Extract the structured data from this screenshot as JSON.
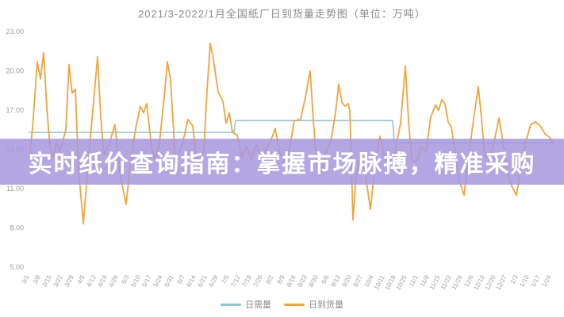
{
  "header": {
    "title": "2021/3-2022/1月全国纸厂日到货量走势图（单位：万吨）"
  },
  "banner": {
    "text": "实时纸价查询指南：掌握市场脉搏，精准采购",
    "background_rgba": "rgba(167,151,221,0.86)",
    "accent_hex": "#a795dd",
    "text_color": "#ffffff"
  },
  "legend": [
    {
      "label": "日需量",
      "color": "#92c4d9"
    },
    {
      "label": "日到货量",
      "color": "#f0a43e"
    }
  ],
  "chart_data": {
    "type": "line",
    "title": "2021/3-2022/1月全国纸厂日到货量走势图（单位：万吨）",
    "unit": "万吨",
    "ylim": [
      5,
      23
    ],
    "y_ticks": [
      "23.00",
      "20.00",
      "17.00",
      "14.00",
      "11.00",
      "8.00",
      "5.00"
    ],
    "x_ticks": [
      "3/1",
      "3/8",
      "3/15",
      "3/22",
      "3/29",
      "4/5",
      "4/12",
      "4/19",
      "4/26",
      "5/3",
      "5/10",
      "5/17",
      "5/24",
      "5/31",
      "6/7",
      "6/14",
      "6/21",
      "6/28",
      "7/5",
      "7/12",
      "7/19",
      "7/26",
      "8/2",
      "8/9",
      "8/16",
      "8/23",
      "8/30",
      "9/6",
      "9/13",
      "9/20",
      "9/27",
      "10/4",
      "10/11",
      "10/18",
      "10/25",
      "11/1",
      "11/8",
      "11/15",
      "11/22",
      "11/29",
      "12/6",
      "12/13",
      "12/20",
      "12/27",
      "1/3",
      "1/10",
      "1/17",
      "1/24"
    ],
    "x_tick_interval_days": 7,
    "x_domain_days": [
      0,
      330
    ],
    "grid": false,
    "legend_position": "bottom",
    "series": [
      {
        "name": "日需量",
        "color": "#92c4d9",
        "width": 1.6,
        "points": [
          [
            0,
            15.3
          ],
          [
            129,
            15.3
          ],
          [
            130,
            16.2
          ],
          [
            229,
            16.2
          ],
          [
            230,
            14.5
          ],
          [
            330,
            14.5
          ]
        ]
      },
      {
        "name": "日到货量",
        "color": "#f0a43e",
        "width": 1.8,
        "points": [
          [
            0,
            13.2
          ],
          [
            2,
            15.6
          ],
          [
            5,
            20.7
          ],
          [
            7,
            19.4
          ],
          [
            9,
            21.4
          ],
          [
            11,
            17.2
          ],
          [
            13,
            14.2
          ],
          [
            15,
            13.4
          ],
          [
            17,
            14.6
          ],
          [
            19,
            13.8
          ],
          [
            21,
            14.6
          ],
          [
            23,
            15.5
          ],
          [
            25,
            20.5
          ],
          [
            27,
            18.3
          ],
          [
            29,
            18.6
          ],
          [
            31,
            12.5
          ],
          [
            34,
            8.3
          ],
          [
            37,
            12.8
          ],
          [
            40,
            17.0
          ],
          [
            43,
            21.1
          ],
          [
            45,
            16.5
          ],
          [
            47,
            13.6
          ],
          [
            50,
            14.3
          ],
          [
            54,
            15.9
          ],
          [
            57,
            12.2
          ],
          [
            61,
            9.8
          ],
          [
            64,
            13.2
          ],
          [
            67,
            15.6
          ],
          [
            70,
            17.3
          ],
          [
            72,
            16.8
          ],
          [
            74,
            17.5
          ],
          [
            77,
            14.2
          ],
          [
            79,
            13.2
          ],
          [
            82,
            14.5
          ],
          [
            85,
            18.0
          ],
          [
            87,
            20.7
          ],
          [
            89,
            19.3
          ],
          [
            92,
            13.2
          ],
          [
            95,
            13.9
          ],
          [
            98,
            15.2
          ],
          [
            100,
            16.3
          ],
          [
            103,
            15.8
          ],
          [
            106,
            12.6
          ],
          [
            110,
            14.0
          ],
          [
            112,
            18.5
          ],
          [
            114,
            22.1
          ],
          [
            116,
            20.9
          ],
          [
            119,
            18.4
          ],
          [
            122,
            17.7
          ],
          [
            124,
            16.0
          ],
          [
            126,
            16.8
          ],
          [
            128,
            15.3
          ],
          [
            131,
            15.1
          ],
          [
            134,
            13.4
          ],
          [
            137,
            14.2
          ],
          [
            140,
            13.2
          ],
          [
            143,
            14.4
          ],
          [
            146,
            13.3
          ],
          [
            149,
            14.0
          ],
          [
            152,
            14.6
          ],
          [
            155,
            15.6
          ],
          [
            158,
            13.6
          ],
          [
            161,
            13.1
          ],
          [
            164,
            14.0
          ],
          [
            167,
            16.2
          ],
          [
            171,
            16.3
          ],
          [
            174,
            18.0
          ],
          [
            177,
            20.0
          ],
          [
            179,
            16.2
          ],
          [
            181,
            13.0
          ],
          [
            184,
            12.2
          ],
          [
            187,
            13.8
          ],
          [
            190,
            14.6
          ],
          [
            193,
            16.8
          ],
          [
            195,
            19.0
          ],
          [
            197,
            17.6
          ],
          [
            199,
            17.3
          ],
          [
            201,
            17.5
          ],
          [
            202,
            17.0
          ],
          [
            204,
            8.6
          ],
          [
            206,
            12.0
          ],
          [
            209,
            13.6
          ],
          [
            212,
            12.0
          ],
          [
            215,
            9.4
          ],
          [
            218,
            13.0
          ],
          [
            221,
            15.0
          ],
          [
            224,
            13.4
          ],
          [
            227,
            12.9
          ],
          [
            230,
            13.6
          ],
          [
            234,
            16.0
          ],
          [
            237,
            20.4
          ],
          [
            239,
            16.2
          ],
          [
            241,
            13.2
          ],
          [
            244,
            13.0
          ],
          [
            247,
            14.2
          ],
          [
            250,
            13.8
          ],
          [
            253,
            16.5
          ],
          [
            256,
            17.4
          ],
          [
            258,
            17.0
          ],
          [
            260,
            17.8
          ],
          [
            262,
            17.5
          ],
          [
            264,
            16.1
          ],
          [
            266,
            15.7
          ],
          [
            268,
            14.1
          ],
          [
            271,
            11.6
          ],
          [
            274,
            10.5
          ],
          [
            277,
            13.6
          ],
          [
            280,
            16.3
          ],
          [
            283,
            18.8
          ],
          [
            285,
            16.4
          ],
          [
            287,
            13.5
          ],
          [
            290,
            13.2
          ],
          [
            293,
            14.6
          ],
          [
            296,
            16.4
          ],
          [
            298,
            15.0
          ],
          [
            301,
            12.4
          ],
          [
            304,
            11.2
          ],
          [
            307,
            10.5
          ],
          [
            310,
            12.6
          ],
          [
            313,
            14.6
          ],
          [
            316,
            15.9
          ],
          [
            319,
            16.1
          ],
          [
            322,
            15.8
          ],
          [
            325,
            15.2
          ],
          [
            328,
            14.9
          ],
          [
            330,
            14.4
          ]
        ]
      }
    ]
  }
}
